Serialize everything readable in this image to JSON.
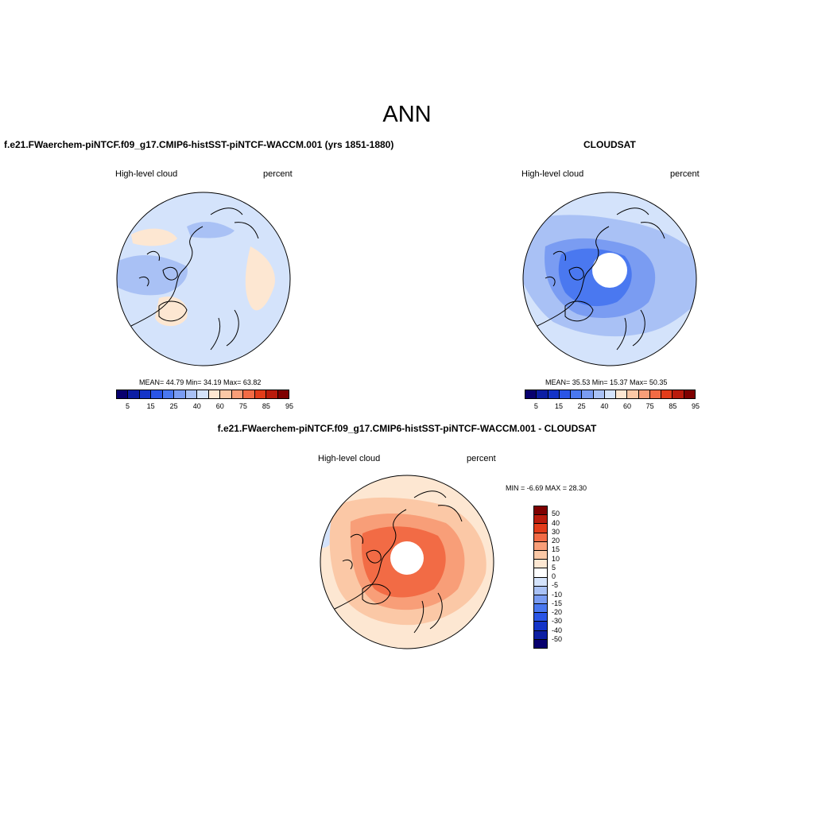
{
  "page_title": "ANN",
  "panels": {
    "model": {
      "title": "f.e21.FWaerchem-piNTCF.f09_g17.CMIP6-histSST-piNTCF-WACCM.001 (yrs 1851-1880)",
      "variable": "High-level cloud",
      "units": "percent",
      "stats": "MEAN=  44.79  Min=  34.19  Max=  63.82"
    },
    "obs": {
      "title": "CLOUDSAT",
      "variable": "High-level cloud",
      "units": "percent",
      "stats": "MEAN=  35.53  Min=  15.37  Max=  50.35"
    },
    "diff": {
      "title": "f.e21.FWaerchem-piNTCF.f09_g17.CMIP6-histSST-piNTCF-WACCM.001 - CLOUDSAT",
      "variable": "High-level cloud",
      "units": "percent",
      "stats": "MIN =  -6.69 MAX =  28.30"
    }
  },
  "chart_data": [
    {
      "type": "heatmap",
      "title": "f.e21.FWaerchem-piNTCF.f09_g17.CMIP6-histSST-piNTCF-WACCM.001 (yrs 1851-1880)",
      "variable": "High-level cloud",
      "units": "percent",
      "projection": "north polar stereographic",
      "mean": 44.79,
      "min": 34.19,
      "max": 63.82,
      "colorbar": {
        "levels": [
          5,
          10,
          15,
          20,
          25,
          30,
          40,
          50,
          60,
          70,
          75,
          80,
          85,
          90,
          95
        ],
        "tick_labels": [
          "5",
          "15",
          "25",
          "40",
          "60",
          "75",
          "85",
          "95"
        ],
        "colors": [
          "#08006e",
          "#0c1ea3",
          "#1434c8",
          "#2a55e6",
          "#4a78f0",
          "#7a9cf2",
          "#a9c1f5",
          "#d4e3fb",
          "#fde7d2",
          "#fbc8a6",
          "#f89e78",
          "#f26b45",
          "#e23c1a",
          "#b91b0c",
          "#7e0000"
        ]
      }
    },
    {
      "type": "heatmap",
      "title": "CLOUDSAT",
      "variable": "High-level cloud",
      "units": "percent",
      "projection": "north polar stereographic",
      "mean": 35.53,
      "min": 15.37,
      "max": 50.35,
      "colorbar": {
        "levels": [
          5,
          10,
          15,
          20,
          25,
          30,
          40,
          50,
          60,
          70,
          75,
          80,
          85,
          90,
          95
        ],
        "tick_labels": [
          "5",
          "15",
          "25",
          "40",
          "60",
          "75",
          "85",
          "95"
        ],
        "colors": [
          "#08006e",
          "#0c1ea3",
          "#1434c8",
          "#2a55e6",
          "#4a78f0",
          "#7a9cf2",
          "#a9c1f5",
          "#d4e3fb",
          "#fde7d2",
          "#fbc8a6",
          "#f89e78",
          "#f26b45",
          "#e23c1a",
          "#b91b0c",
          "#7e0000"
        ]
      }
    },
    {
      "type": "heatmap",
      "title": "f.e21.FWaerchem-piNTCF.f09_g17.CMIP6-histSST-piNTCF-WACCM.001 - CLOUDSAT",
      "variable": "High-level cloud",
      "units": "percent",
      "projection": "north polar stereographic",
      "min": -6.69,
      "max": 28.3,
      "colorbar": {
        "levels": [
          50,
          40,
          30,
          20,
          15,
          10,
          5,
          0,
          -5,
          -10,
          -15,
          -20,
          -30,
          -40,
          -50
        ],
        "tick_labels": [
          "50",
          "40",
          "30",
          "20",
          "15",
          "10",
          "5",
          "0",
          "-5",
          "-10",
          "-15",
          "-20",
          "-30",
          "-40",
          "-50"
        ],
        "colors": [
          "#7e0000",
          "#b91b0c",
          "#e23c1a",
          "#f26b45",
          "#f89e78",
          "#fbc8a6",
          "#fde7d2",
          "#ffffff",
          "#d4e3fb",
          "#a9c1f5",
          "#7a9cf2",
          "#4a78f0",
          "#2a55e6",
          "#1434c8",
          "#0c1ea3",
          "#08006e"
        ]
      }
    }
  ]
}
